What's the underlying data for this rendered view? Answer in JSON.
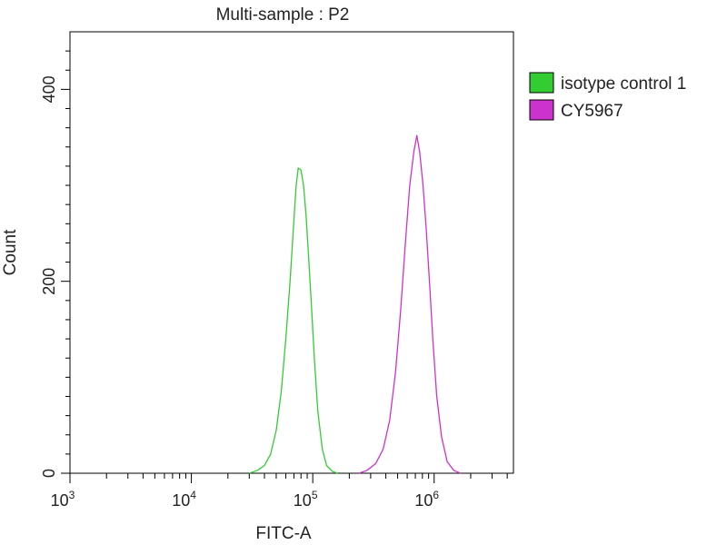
{
  "chart_data": {
    "type": "line",
    "title": "Multi-sample : P2",
    "xlabel": "FITC-A",
    "ylabel": "Count",
    "x_scale": "log",
    "xlim": [
      1000,
      4500000
    ],
    "ylim": [
      0,
      460
    ],
    "x_ticks": [
      {
        "value": 1000,
        "base": "10",
        "exp": "3"
      },
      {
        "value": 10000,
        "base": "10",
        "exp": "4"
      },
      {
        "value": 100000,
        "base": "10",
        "exp": "5"
      },
      {
        "value": 1000000,
        "base": "10",
        "exp": "6"
      }
    ],
    "y_ticks": [
      {
        "value": 0,
        "label": "0"
      },
      {
        "value": 200,
        "label": "200"
      },
      {
        "value": 400,
        "label": "400"
      }
    ],
    "grid": false,
    "legend_position": "right",
    "series": [
      {
        "name": "isotype control 1",
        "color": "#33cc33",
        "points": [
          [
            30000,
            0
          ],
          [
            35000,
            3
          ],
          [
            40000,
            8
          ],
          [
            45000,
            20
          ],
          [
            50000,
            45
          ],
          [
            55000,
            85
          ],
          [
            60000,
            140
          ],
          [
            65000,
            200
          ],
          [
            70000,
            265
          ],
          [
            73000,
            300
          ],
          [
            76000,
            318
          ],
          [
            80000,
            316
          ],
          [
            84000,
            300
          ],
          [
            88000,
            270
          ],
          [
            92000,
            230
          ],
          [
            97000,
            180
          ],
          [
            103000,
            120
          ],
          [
            110000,
            65
          ],
          [
            120000,
            25
          ],
          [
            130000,
            8
          ],
          [
            145000,
            2
          ],
          [
            160000,
            0
          ]
        ]
      },
      {
        "name": "CY5967",
        "color": "#cc33cc",
        "points": [
          [
            240000,
            0
          ],
          [
            280000,
            3
          ],
          [
            330000,
            10
          ],
          [
            380000,
            25
          ],
          [
            430000,
            55
          ],
          [
            480000,
            105
          ],
          [
            530000,
            170
          ],
          [
            580000,
            240
          ],
          [
            630000,
            300
          ],
          [
            680000,
            335
          ],
          [
            720000,
            352
          ],
          [
            760000,
            335
          ],
          [
            810000,
            300
          ],
          [
            860000,
            255
          ],
          [
            920000,
            195
          ],
          [
            980000,
            135
          ],
          [
            1050000,
            80
          ],
          [
            1150000,
            38
          ],
          [
            1280000,
            12
          ],
          [
            1450000,
            3
          ],
          [
            1650000,
            0
          ]
        ]
      }
    ]
  }
}
